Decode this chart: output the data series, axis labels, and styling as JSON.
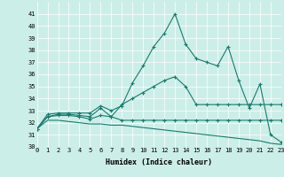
{
  "xlabel": "Humidex (Indice chaleur)",
  "background_color": "#cceee8",
  "line_color": "#1a7a6e",
  "grid_color": "#ffffff",
  "x": [
    0,
    1,
    2,
    3,
    4,
    5,
    6,
    7,
    8,
    9,
    10,
    11,
    12,
    13,
    14,
    15,
    16,
    17,
    18,
    19,
    20,
    21,
    22,
    23
  ],
  "series1": [
    31.5,
    32.7,
    32.8,
    32.8,
    32.8,
    32.8,
    33.4,
    33.0,
    33.4,
    35.3,
    36.7,
    38.3,
    39.4,
    41.0,
    38.5,
    37.3,
    37.0,
    36.7,
    38.3,
    35.5,
    33.2,
    35.2,
    31.0,
    30.4
  ],
  "series2": [
    31.5,
    32.5,
    32.7,
    32.7,
    32.6,
    32.5,
    33.2,
    32.5,
    33.5,
    34.0,
    34.5,
    35.0,
    35.5,
    35.8,
    35.0,
    33.5,
    33.5,
    33.5,
    33.5,
    33.5,
    33.5,
    33.5,
    33.5,
    33.5
  ],
  "series3": [
    31.5,
    32.5,
    32.6,
    32.6,
    32.5,
    32.3,
    32.6,
    32.5,
    32.2,
    32.2,
    32.2,
    32.2,
    32.2,
    32.2,
    32.2,
    32.2,
    32.2,
    32.2,
    32.2,
    32.2,
    32.2,
    32.2,
    32.2,
    32.2
  ],
  "series4": [
    31.5,
    32.2,
    32.2,
    32.1,
    32.0,
    31.9,
    31.9,
    31.8,
    31.8,
    31.7,
    31.6,
    31.5,
    31.4,
    31.3,
    31.2,
    31.1,
    31.0,
    30.9,
    30.8,
    30.7,
    30.6,
    30.5,
    30.3,
    30.2
  ],
  "ylim": [
    30,
    42
  ],
  "xlim": [
    0,
    23
  ],
  "yticks": [
    30,
    31,
    32,
    33,
    34,
    35,
    36,
    37,
    38,
    39,
    40,
    41
  ],
  "xticks": [
    0,
    1,
    2,
    3,
    4,
    5,
    6,
    7,
    8,
    9,
    10,
    11,
    12,
    13,
    14,
    15,
    16,
    17,
    18,
    19,
    20,
    21,
    22,
    23
  ],
  "xtick_labels": [
    "0",
    "1",
    "2",
    "3",
    "4",
    "5",
    "6",
    "7",
    "8",
    "9",
    "10",
    "11",
    "12",
    "13",
    "14",
    "15",
    "16",
    "17",
    "18",
    "19",
    "20",
    "21",
    "22",
    "23"
  ],
  "fontsize_axis_label": 6,
  "fontsize_ticks": 5,
  "marker": "+",
  "markersize": 3.5,
  "linewidth": 0.8
}
